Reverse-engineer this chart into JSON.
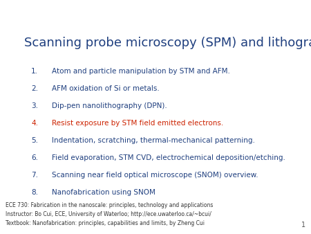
{
  "title": "Scanning probe microscopy (SPM) and lithography",
  "title_color": "#1F3F7F",
  "title_fontsize": 13,
  "items": [
    {
      "num": "1.",
      "text": "Atom and particle manipulation by STM and AFM.",
      "color": "#1F3F7F"
    },
    {
      "num": "2.",
      "text": "AFM oxidation of Si or metals.",
      "color": "#1F3F7F"
    },
    {
      "num": "3.",
      "text": "Dip-pen nanolithography (DPN).",
      "color": "#1F3F7F"
    },
    {
      "num": "4.",
      "text": "Resist exposure by STM field emitted electrons.",
      "color": "#CC2200"
    },
    {
      "num": "5.",
      "text": "Indentation, scratching, thermal-mechanical patterning.",
      "color": "#1F3F7F"
    },
    {
      "num": "6.",
      "text": "Field evaporation, STM CVD, electrochemical deposition/etching.",
      "color": "#1F3F7F"
    },
    {
      "num": "7.",
      "text": "Scanning near field optical microscope (SNOM) overview.",
      "color": "#1F3F7F"
    },
    {
      "num": "8.",
      "text": "Nanofabrication using SNOM",
      "color": "#1F3F7F"
    }
  ],
  "item_fontsize": 7.5,
  "footer_lines": [
    "ECE 730: Fabrication in the nanoscale: principles, technology and applications",
    "Instructor: Bo Cui, ECE, University of Waterloo; http://ece.uwaterloo.ca/~bcui/",
    "Textbook: Nanofabrication: principles, capabilities and limits, by Zheng Cui"
  ],
  "footer_fontsize": 5.5,
  "footer_color": "#333333",
  "page_number": "1",
  "background_color": "#ffffff"
}
